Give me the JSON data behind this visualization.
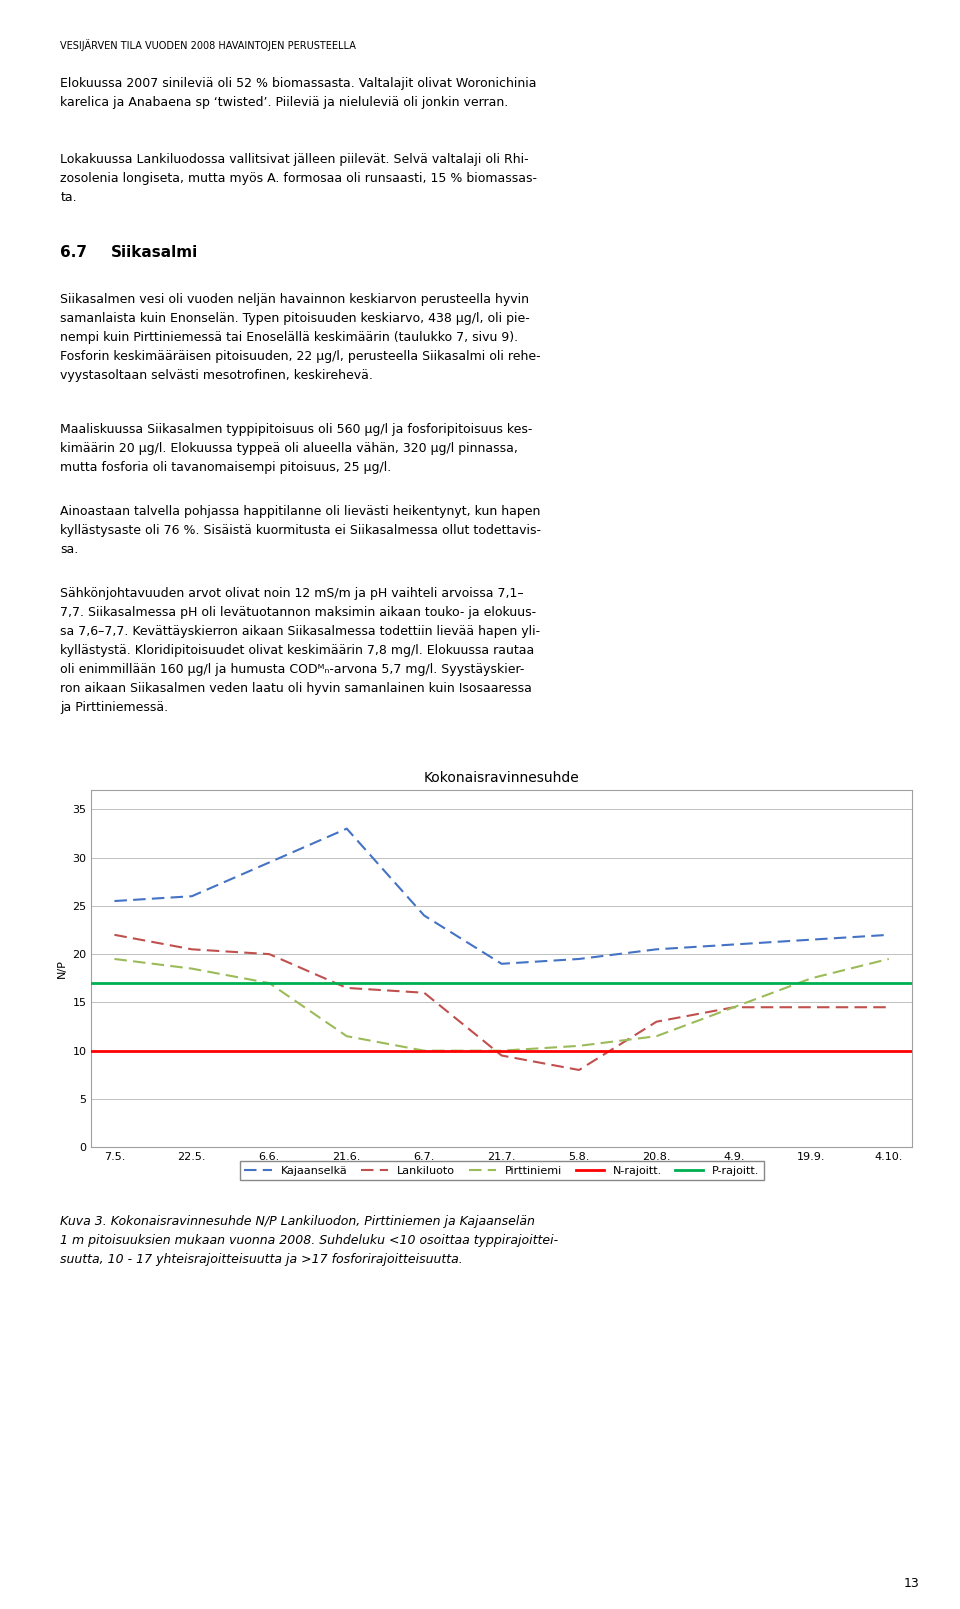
{
  "title": "Kokonaisravinnesuhde",
  "xlabel_labels": [
    "7.5.",
    "22.5.",
    "6.6.",
    "21.6.",
    "6.7.",
    "21.7.",
    "5.8.",
    "20.8.",
    "4.9.",
    "19.9.",
    "4.10."
  ],
  "ylabel": "N/P",
  "ylim": [
    0,
    37
  ],
  "yticks": [
    0,
    5,
    10,
    15,
    20,
    25,
    30,
    35
  ],
  "kajaanselka": [
    25.5,
    26.0,
    29.5,
    33.0,
    24.0,
    19.0,
    19.5,
    20.5,
    21.0,
    21.5,
    22.0
  ],
  "lankiluoto": [
    22.0,
    20.5,
    20.0,
    16.5,
    16.0,
    9.5,
    8.0,
    13.0,
    14.5,
    14.5,
    14.5
  ],
  "pirttiniemi": [
    19.5,
    18.5,
    17.0,
    11.5,
    10.0,
    10.0,
    10.5,
    11.5,
    14.5,
    17.5,
    19.5
  ],
  "n_rajoitt": 10.0,
  "p_rajoitt": 17.0,
  "kajaanselka_color": "#4472C4",
  "lankiluoto_color": "#C0504D",
  "pirttiniemi_color": "#9BBB59",
  "n_rajoitt_color": "#FF0000",
  "p_rajoitt_color": "#00B050",
  "chart_bg_color": "#FFFFFF",
  "grid_color": "#C0C0C0",
  "page_bg": "#FFFFFF",
  "chart_title_fontsize": 10,
  "axis_fontsize": 8,
  "legend_fontsize": 8,
  "text_fontsize": 9,
  "header_fontsize": 7
}
